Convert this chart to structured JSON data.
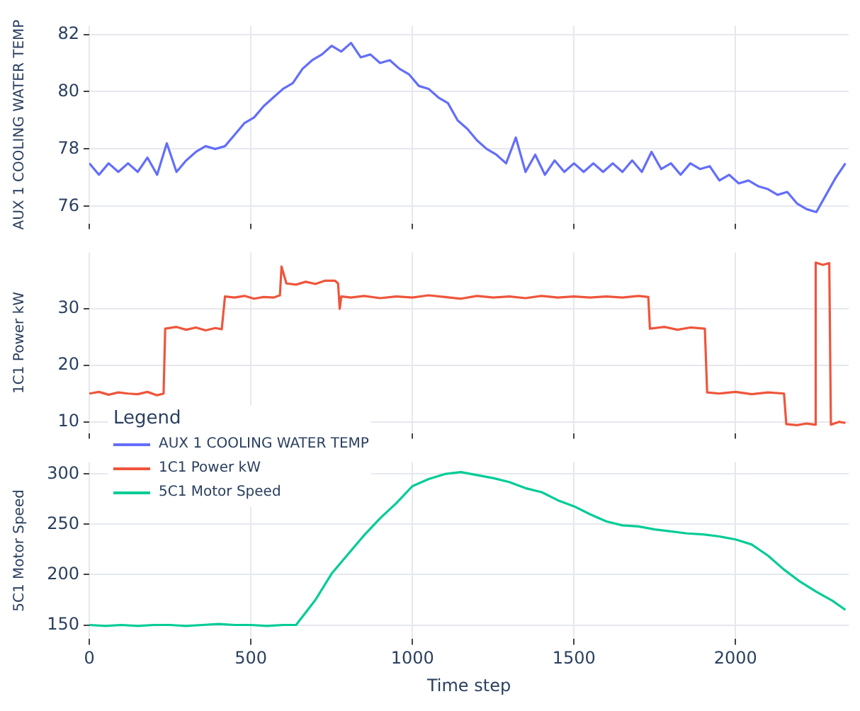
{
  "chart_data": [
    {
      "type": "line",
      "ylabel": "AUX 1 COOLING WATER TEMP",
      "grid": true,
      "legend": "bottom left",
      "tick_labels": "y",
      "xlim": [
        0,
        2350
      ],
      "xticks": [
        0,
        500,
        1000,
        1500,
        2000
      ],
      "ylim": [
        75.4,
        82.3
      ],
      "yticks": [
        76,
        78,
        80,
        82
      ],
      "series": [
        {
          "name": "AUX 1 COOLING WATER TEMP",
          "color": "#636efa",
          "x": [
            0,
            30,
            60,
            90,
            120,
            150,
            180,
            210,
            240,
            270,
            300,
            330,
            360,
            390,
            420,
            450,
            480,
            510,
            540,
            570,
            600,
            630,
            660,
            690,
            720,
            750,
            780,
            810,
            840,
            870,
            900,
            930,
            960,
            990,
            1020,
            1050,
            1080,
            1110,
            1140,
            1170,
            1200,
            1230,
            1260,
            1290,
            1320,
            1350,
            1380,
            1410,
            1440,
            1470,
            1500,
            1530,
            1560,
            1590,
            1620,
            1650,
            1680,
            1710,
            1740,
            1770,
            1800,
            1830,
            1860,
            1890,
            1920,
            1950,
            1980,
            2010,
            2040,
            2070,
            2100,
            2130,
            2160,
            2190,
            2220,
            2250,
            2280,
            2310,
            2340
          ],
          "values": [
            77.5,
            77.1,
            77.5,
            77.2,
            77.5,
            77.2,
            77.7,
            77.1,
            78.2,
            77.2,
            77.6,
            77.9,
            78.1,
            78.0,
            78.1,
            78.5,
            78.9,
            79.1,
            79.5,
            79.8,
            80.1,
            80.3,
            80.8,
            81.1,
            81.3,
            81.6,
            81.4,
            81.7,
            81.2,
            81.3,
            81.0,
            81.1,
            80.8,
            80.6,
            80.2,
            80.1,
            79.8,
            79.6,
            79.0,
            78.7,
            78.3,
            78.0,
            77.8,
            77.5,
            78.4,
            77.2,
            77.8,
            77.1,
            77.6,
            77.2,
            77.5,
            77.2,
            77.5,
            77.2,
            77.5,
            77.2,
            77.6,
            77.2,
            77.9,
            77.3,
            77.5,
            77.1,
            77.5,
            77.3,
            77.4,
            76.9,
            77.1,
            76.8,
            76.9,
            76.7,
            76.6,
            76.4,
            76.5,
            76.1,
            75.9,
            75.8,
            76.4,
            77.0,
            77.5
          ]
        }
      ]
    },
    {
      "type": "line",
      "ylabel": "1C1 Power kW",
      "grid": true,
      "legend": "bottom left",
      "tick_labels": "y",
      "xlim": [
        0,
        2350
      ],
      "xticks": [
        0,
        500,
        1000,
        1500,
        2000
      ],
      "ylim": [
        8,
        40
      ],
      "yticks": [
        10,
        20,
        30
      ],
      "series": [
        {
          "name": "1C1 Power kW",
          "color": "#ef553b",
          "x": [
            0,
            30,
            60,
            90,
            120,
            150,
            180,
            210,
            230,
            235,
            270,
            300,
            330,
            360,
            390,
            410,
            420,
            450,
            480,
            510,
            540,
            570,
            590,
            595,
            610,
            640,
            670,
            700,
            730,
            760,
            770,
            775,
            780,
            810,
            850,
            900,
            950,
            1000,
            1050,
            1100,
            1150,
            1200,
            1250,
            1300,
            1350,
            1400,
            1450,
            1500,
            1550,
            1600,
            1650,
            1700,
            1730,
            1735,
            1780,
            1820,
            1860,
            1905,
            1912,
            1950,
            2000,
            2050,
            2100,
            2150,
            2157,
            2190,
            2220,
            2245,
            2248,
            2270,
            2290,
            2295,
            2320,
            2340
          ],
          "values": [
            15,
            15.3,
            14.8,
            15.2,
            15,
            14.9,
            15.3,
            14.7,
            15,
            26.5,
            26.8,
            26.3,
            26.7,
            26.2,
            26.6,
            26.4,
            32.2,
            32,
            32.3,
            31.8,
            32.1,
            32,
            32.4,
            37.5,
            34.5,
            34.3,
            34.8,
            34.4,
            35,
            35,
            34.5,
            30,
            32.2,
            32,
            32.3,
            31.9,
            32.2,
            32,
            32.4,
            32.1,
            31.8,
            32.3,
            32,
            32.2,
            31.9,
            32.3,
            32,
            32.2,
            32,
            32.2,
            32,
            32.3,
            32.1,
            26.5,
            26.8,
            26.3,
            26.7,
            26.5,
            15.2,
            15,
            15.3,
            14.9,
            15.2,
            15,
            9.6,
            9.4,
            9.7,
            9.5,
            38.2,
            37.8,
            38.1,
            9.5,
            10,
            9.8
          ]
        }
      ]
    },
    {
      "type": "line",
      "xlabel": "Time step",
      "ylabel": "5C1 Motor Speed",
      "grid": true,
      "legend": "top left",
      "legend_title": "Legend",
      "xlim": [
        0,
        2350
      ],
      "xticks": [
        0,
        500,
        1000,
        1500,
        2000
      ],
      "ylim": [
        136,
        312
      ],
      "yticks": [
        150,
        200,
        250,
        300
      ],
      "series": [
        {
          "name": "5C1 Motor Speed",
          "color": "#00cc96",
          "x": [
            0,
            50,
            100,
            150,
            200,
            250,
            300,
            350,
            400,
            450,
            500,
            550,
            600,
            640,
            700,
            750,
            800,
            850,
            900,
            950,
            1000,
            1050,
            1100,
            1150,
            1200,
            1250,
            1300,
            1350,
            1400,
            1450,
            1500,
            1550,
            1600,
            1650,
            1700,
            1750,
            1800,
            1850,
            1900,
            1950,
            2000,
            2050,
            2100,
            2150,
            2200,
            2250,
            2300,
            2340
          ],
          "values": [
            150,
            149,
            150,
            149,
            150,
            150,
            149,
            150,
            151,
            150,
            150,
            149,
            150,
            150,
            175,
            201,
            220,
            239,
            256,
            271,
            288,
            295,
            300,
            302,
            299,
            296,
            292,
            286,
            282,
            274,
            268,
            260,
            253,
            249,
            248,
            245,
            243,
            241,
            240,
            238,
            235,
            230,
            219,
            205,
            193,
            183,
            174,
            165
          ]
        }
      ]
    }
  ]
}
